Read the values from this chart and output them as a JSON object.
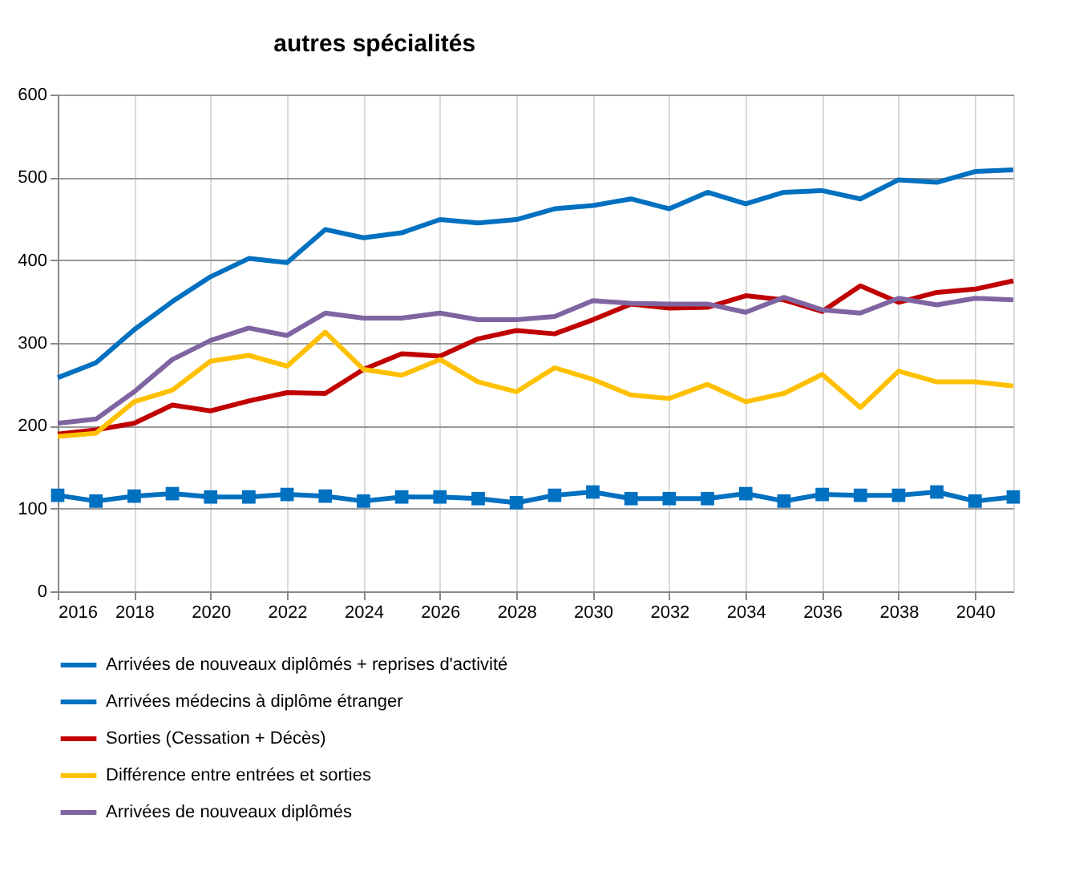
{
  "chart_data": {
    "type": "line",
    "title": "autres spécialités",
    "x": [
      2016,
      2017,
      2018,
      2019,
      2020,
      2021,
      2022,
      2023,
      2024,
      2025,
      2026,
      2027,
      2028,
      2029,
      2030,
      2031,
      2032,
      2033,
      2034,
      2035,
      2036,
      2037,
      2038,
      2039,
      2040,
      2041
    ],
    "xlim": [
      2016,
      2041
    ],
    "xticks": [
      2016,
      2018,
      2020,
      2022,
      2024,
      2026,
      2028,
      2030,
      2032,
      2034,
      2036,
      2038,
      2040
    ],
    "ylim": [
      0,
      600
    ],
    "yticks": [
      0,
      100,
      200,
      300,
      400,
      500,
      600
    ],
    "grid": true,
    "legend": "bottom",
    "line_style": "solid",
    "series": [
      {
        "name": "Arrivées de nouveaux diplômés + reprises d'activité",
        "color": "#0070c0",
        "marker": "none",
        "values": [
          258,
          276,
          316,
          350,
          380,
          402,
          397,
          437,
          427,
          433,
          449,
          445,
          449,
          462,
          466,
          474,
          462,
          482,
          468,
          482,
          484,
          474,
          497,
          494,
          507,
          509
        ]
      },
      {
        "name": "Arrivées médecins à diplôme étranger",
        "color": "#0070c0",
        "marker": "square",
        "values": [
          116,
          109,
          115,
          118,
          114,
          114,
          117,
          115,
          109,
          114,
          114,
          112,
          107,
          116,
          120,
          112,
          112,
          112,
          118,
          109,
          117,
          116,
          116,
          120,
          109,
          114
        ]
      },
      {
        "name": "Sorties (Cessation + Décès)",
        "color": "#c00000",
        "marker": "none",
        "values": [
          190,
          195,
          203,
          225,
          218,
          230,
          240,
          239,
          268,
          287,
          284,
          305,
          315,
          311,
          328,
          347,
          342,
          343,
          357,
          352,
          338,
          369,
          349,
          361,
          365,
          375
        ]
      },
      {
        "name": "Différence entre entrées et sorties",
        "color": "#ffc000",
        "marker": "none",
        "values": [
          187,
          191,
          229,
          243,
          278,
          285,
          272,
          313,
          268,
          261,
          280,
          253,
          241,
          270,
          256,
          237,
          233,
          250,
          229,
          239,
          262,
          222,
          266,
          253,
          253,
          248
        ]
      },
      {
        "name": "Arrivées de nouveaux diplômés",
        "color": "#8064a2",
        "marker": "none",
        "values": [
          203,
          208,
          241,
          280,
          303,
          318,
          309,
          336,
          330,
          330,
          336,
          328,
          328,
          332,
          351,
          348,
          347,
          347,
          337,
          355,
          340,
          336,
          354,
          346,
          354,
          352
        ]
      }
    ]
  }
}
